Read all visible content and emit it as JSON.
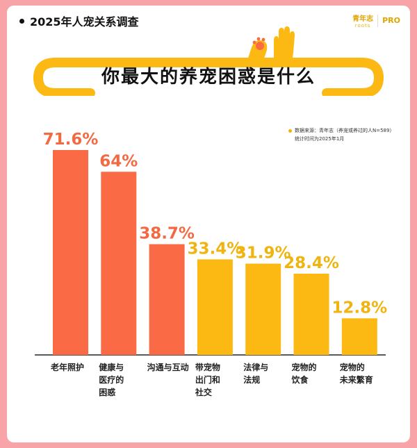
{
  "header": {
    "title": "2025年人宠关系调查"
  },
  "brand": {
    "name": "青年志",
    "sub": "roots",
    "pro": "PRO"
  },
  "main_title": "你最大的养宠困惑是什么",
  "source": {
    "line1": "数据来源：青年志（养宠或养过的人N=589）",
    "line2": "统计时间为2025年1月"
  },
  "colors": {
    "red": "#fa6a44",
    "yellow": "#fdb913",
    "red_label": "#f26a42",
    "yellow_label": "#f0b410"
  },
  "chart_data": {
    "type": "bar",
    "categories": [
      "老年照护",
      "健康与医疗的困惑",
      "沟通与互动",
      "带宠物出门和社交",
      "法律与法规",
      "宠物的饮食",
      "宠物的未来繁育"
    ],
    "category_lines": [
      [
        "老年照护"
      ],
      [
        "健康与",
        "医疗的",
        "困惑"
      ],
      [
        "沟通与互动"
      ],
      [
        "带宠物",
        "出门和",
        "社交"
      ],
      [
        "法律与",
        "法规"
      ],
      [
        "宠物的",
        "饮食"
      ],
      [
        "宠物的",
        "未来繁育"
      ]
    ],
    "values": [
      71.6,
      64,
      38.7,
      33.4,
      31.9,
      28.4,
      12.8
    ],
    "labels": [
      "71.6%",
      "64%",
      "38.7%",
      "33.4%",
      "31.9%",
      "28.4%",
      "12.8%"
    ],
    "series_colors": [
      "red",
      "red",
      "red",
      "yellow",
      "yellow",
      "yellow",
      "yellow"
    ],
    "ylim": [
      0,
      100
    ],
    "grid": false,
    "legend": "none"
  }
}
